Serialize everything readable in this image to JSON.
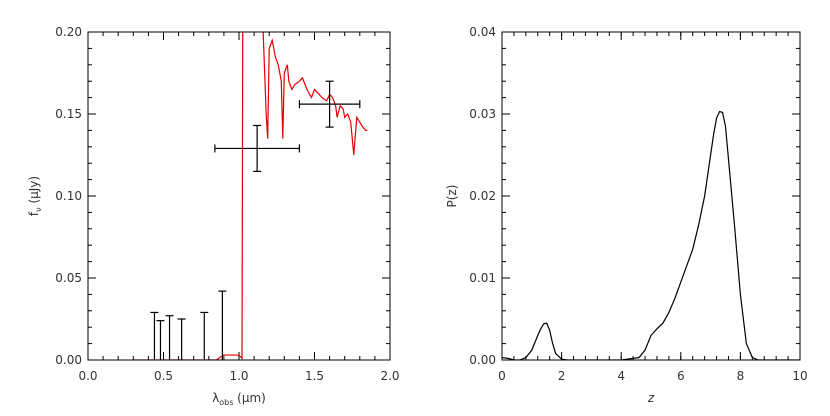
{
  "chart_data": [
    {
      "type": "line",
      "panel": "left",
      "xlabel": "λ",
      "xlabel_sub": "obs",
      "xlabel_units": " (μm)",
      "ylabel": "f",
      "ylabel_sub": "ν",
      "ylabel_units": " (μJy)",
      "xlim": [
        0.0,
        2.0
      ],
      "ylim": [
        0.0,
        0.2
      ],
      "xticks": [
        0.0,
        0.5,
        1.0,
        1.5,
        2.0
      ],
      "xtick_labels": [
        "0.0",
        "0.5",
        "1.0",
        "1.5",
        "2.0"
      ],
      "yticks": [
        0.0,
        0.05,
        0.1,
        0.15,
        0.2
      ],
      "ytick_labels": [
        "0.00",
        "0.05",
        "0.10",
        "0.15",
        "0.20"
      ],
      "series": [
        {
          "color": "#e00000",
          "x": [
            0.3,
            0.85,
            0.88,
            0.9,
            1.0,
            1.02,
            1.025,
            1.06,
            1.08,
            1.1,
            1.11,
            1.13,
            1.16,
            1.18,
            1.19,
            1.2,
            1.22,
            1.24,
            1.26,
            1.28,
            1.29,
            1.3,
            1.32,
            1.33,
            1.35,
            1.37,
            1.4,
            1.42,
            1.45,
            1.48,
            1.5,
            1.52,
            1.55,
            1.58,
            1.6,
            1.62,
            1.64,
            1.65,
            1.67,
            1.69,
            1.7,
            1.72,
            1.74,
            1.76,
            1.78,
            1.8,
            1.82,
            1.84,
            1.85
          ],
          "y": [
            0.0,
            0.0,
            0.002,
            0.003,
            0.003,
            0.001,
            0.21,
            0.21,
            0.21,
            0.21,
            0.21,
            0.21,
            0.2,
            0.15,
            0.135,
            0.19,
            0.195,
            0.185,
            0.18,
            0.17,
            0.135,
            0.175,
            0.18,
            0.17,
            0.165,
            0.168,
            0.17,
            0.172,
            0.165,
            0.16,
            0.165,
            0.163,
            0.16,
            0.158,
            0.162,
            0.16,
            0.155,
            0.148,
            0.155,
            0.153,
            0.148,
            0.15,
            0.145,
            0.125,
            0.148,
            0.145,
            0.142,
            0.14,
            0.14
          ]
        }
      ],
      "error_bars": [
        {
          "x": 1.12,
          "y": 0.129,
          "xerr": 0.28,
          "yerr": 0.014
        },
        {
          "x": 1.6,
          "y": 0.156,
          "xerr": 0.2,
          "yerr": 0.014
        }
      ],
      "upper_limits": [
        {
          "x": 0.44,
          "y": 0.0,
          "y_top": 0.029
        },
        {
          "x": 0.48,
          "y": 0.0,
          "y_top": 0.024
        },
        {
          "x": 0.54,
          "y": 0.0,
          "y_top": 0.027
        },
        {
          "x": 0.62,
          "y": 0.0,
          "y_top": 0.025
        },
        {
          "x": 0.77,
          "y": 0.0,
          "y_top": 0.029
        },
        {
          "x": 0.89,
          "y": 0.0,
          "y_top": 0.042
        }
      ]
    },
    {
      "type": "line",
      "panel": "right",
      "xlabel": "z",
      "ylabel": "P(z)",
      "xlim": [
        0,
        10
      ],
      "ylim": [
        0.0,
        0.04
      ],
      "xticks": [
        0,
        2,
        4,
        6,
        8,
        10
      ],
      "xtick_labels": [
        "0",
        "2",
        "4",
        "6",
        "8",
        "10"
      ],
      "yticks": [
        0.0,
        0.01,
        0.02,
        0.03,
        0.04
      ],
      "ytick_labels": [
        "0.00",
        "0.01",
        "0.02",
        "0.03",
        "0.04"
      ],
      "series": [
        {
          "color": "#000000",
          "x": [
            0.0,
            0.2,
            0.4,
            0.6,
            0.8,
            1.0,
            1.2,
            1.3,
            1.4,
            1.5,
            1.6,
            1.7,
            1.8,
            2.0,
            2.2,
            2.5,
            3.0,
            4.0,
            4.6,
            4.8,
            5.0,
            5.2,
            5.4,
            5.6,
            5.8,
            6.0,
            6.2,
            6.4,
            6.6,
            6.8,
            7.0,
            7.1,
            7.2,
            7.3,
            7.4,
            7.5,
            7.6,
            7.8,
            8.0,
            8.2,
            8.4,
            8.6,
            8.8,
            9.0,
            10.0
          ],
          "y": [
            0.0003,
            0.0002,
            0.0,
            0.0,
            0.0003,
            0.0012,
            0.003,
            0.0038,
            0.0044,
            0.0045,
            0.0036,
            0.002,
            0.0008,
            0.0001,
            0.0,
            0.0,
            0.0,
            0.0,
            0.0003,
            0.0012,
            0.003,
            0.0038,
            0.0045,
            0.0058,
            0.0075,
            0.0095,
            0.0115,
            0.0135,
            0.0165,
            0.02,
            0.025,
            0.0275,
            0.0295,
            0.0303,
            0.0302,
            0.0285,
            0.0245,
            0.0165,
            0.008,
            0.002,
            0.0003,
            0.0,
            0.0,
            0.0,
            0.0
          ]
        }
      ]
    }
  ]
}
